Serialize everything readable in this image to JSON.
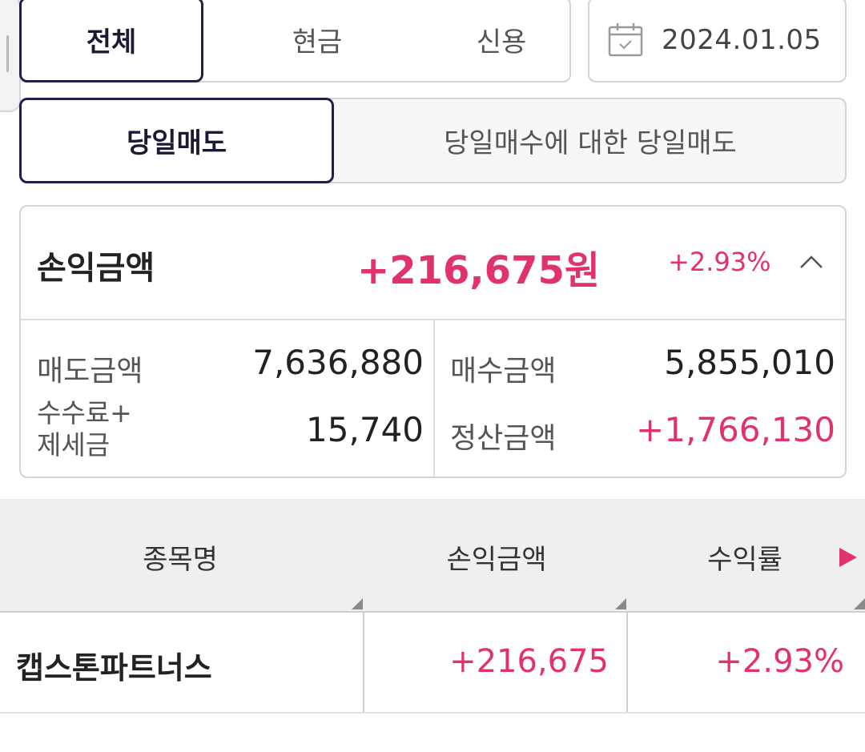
{
  "filters": {
    "account_type": {
      "options": [
        "전체",
        "현금",
        "신용"
      ],
      "selected": "전체"
    },
    "date": "2024.01.05",
    "sell_type": {
      "options": [
        "당일매도",
        "당일매수에 대한 당일매도"
      ],
      "selected": "당일매도"
    }
  },
  "summary": {
    "label": "손익금액",
    "profit_amount": "+216,675원",
    "profit_rate": "+2.93%",
    "sell_amount_label": "매도금액",
    "sell_amount": "7,636,880",
    "buy_amount_label": "매수금액",
    "buy_amount": "5,855,010",
    "fee_tax_label_line1": "수수료+",
    "fee_tax_label_line2": "제세금",
    "fee_tax": "15,740",
    "settlement_label": "정산금액",
    "settlement": "+1,766,130"
  },
  "table": {
    "columns": [
      "종목명",
      "손익금액",
      "수익률"
    ],
    "rows": [
      {
        "name": "캡스톤파트너스",
        "profit": "+216,675",
        "rate": "+2.93%"
      }
    ]
  },
  "colors": {
    "accent_pink": "#e0336e",
    "active_border_navy": "#1f2149"
  },
  "icons": [
    "calendar-icon",
    "chevron-up-icon",
    "scroll-right-arrow-icon"
  ]
}
